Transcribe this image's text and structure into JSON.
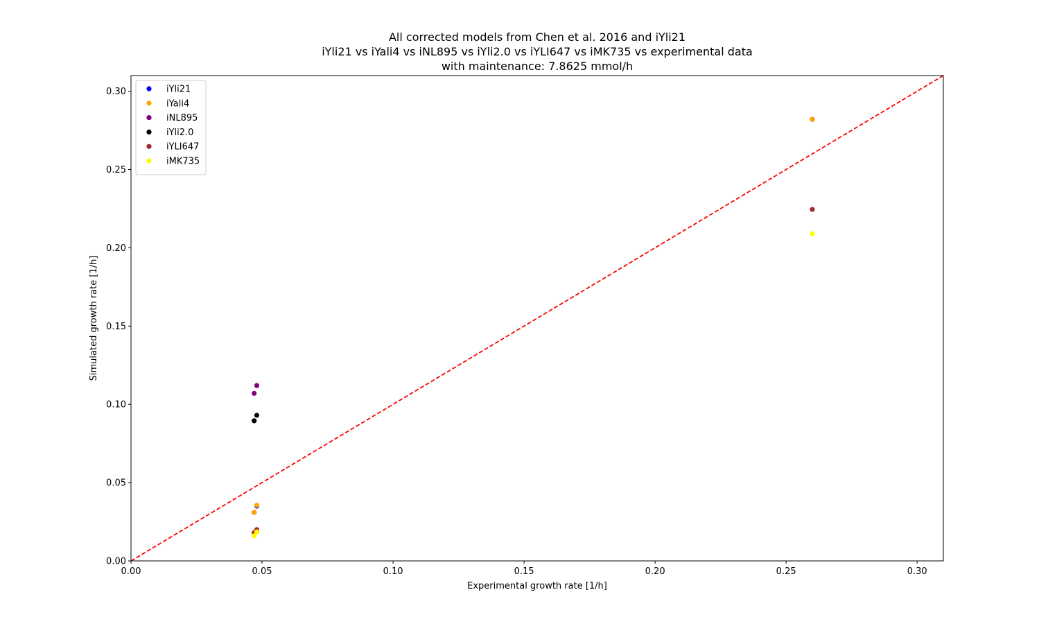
{
  "chart_data": {
    "type": "scatter",
    "title_lines": [
      "All corrected models from Chen et al. 2016 and iYli21",
      "iYli21 vs iYali4 vs iNL895 vs iYli2.0 vs iYLI647 vs iMK735 vs experimental data",
      "with maintenance: 7.8625 mmol/h"
    ],
    "xlabel": "Experimental growth rate [1/h]",
    "ylabel": "Simulated growth rate [1/h]",
    "xlim": [
      0.0,
      0.31
    ],
    "ylim": [
      0.0,
      0.31
    ],
    "x_ticks": [
      0.0,
      0.05,
      0.1,
      0.15,
      0.2,
      0.25,
      0.3
    ],
    "y_ticks": [
      0.0,
      0.05,
      0.1,
      0.15,
      0.2,
      0.25,
      0.3
    ],
    "x_tick_labels": [
      "0.00",
      "0.05",
      "0.10",
      "0.15",
      "0.20",
      "0.25",
      "0.30"
    ],
    "y_tick_labels": [
      "0.00",
      "0.05",
      "0.10",
      "0.15",
      "0.20",
      "0.25",
      "0.30"
    ],
    "grid": false,
    "legend_position": "top-left",
    "reference_line": {
      "type": "identity",
      "color": "#ff0000",
      "style": "dashed"
    },
    "series": [
      {
        "name": "iYli21",
        "color": "#0000ff",
        "points": [
          [
            0.047,
            0.031
          ],
          [
            0.048,
            0.035
          ],
          [
            0.26,
            0.282
          ]
        ]
      },
      {
        "name": "iYali4",
        "color": "#ffa500",
        "points": [
          [
            0.047,
            0.031
          ],
          [
            0.048,
            0.0355
          ],
          [
            0.26,
            0.282
          ]
        ]
      },
      {
        "name": "iNL895",
        "color": "#800080",
        "points": [
          [
            0.047,
            0.107
          ],
          [
            0.048,
            0.112
          ]
        ]
      },
      {
        "name": "iYli2.0",
        "color": "#000000",
        "points": [
          [
            0.047,
            0.0895
          ],
          [
            0.048,
            0.093
          ]
        ]
      },
      {
        "name": "iYLI647",
        "color": "#a52a2a",
        "points": [
          [
            0.047,
            0.018
          ],
          [
            0.048,
            0.02
          ],
          [
            0.26,
            0.2245
          ]
        ]
      },
      {
        "name": "iMK735",
        "color": "#ffff00",
        "points": [
          [
            0.047,
            0.016
          ],
          [
            0.048,
            0.0185
          ],
          [
            0.26,
            0.209
          ]
        ]
      }
    ]
  }
}
